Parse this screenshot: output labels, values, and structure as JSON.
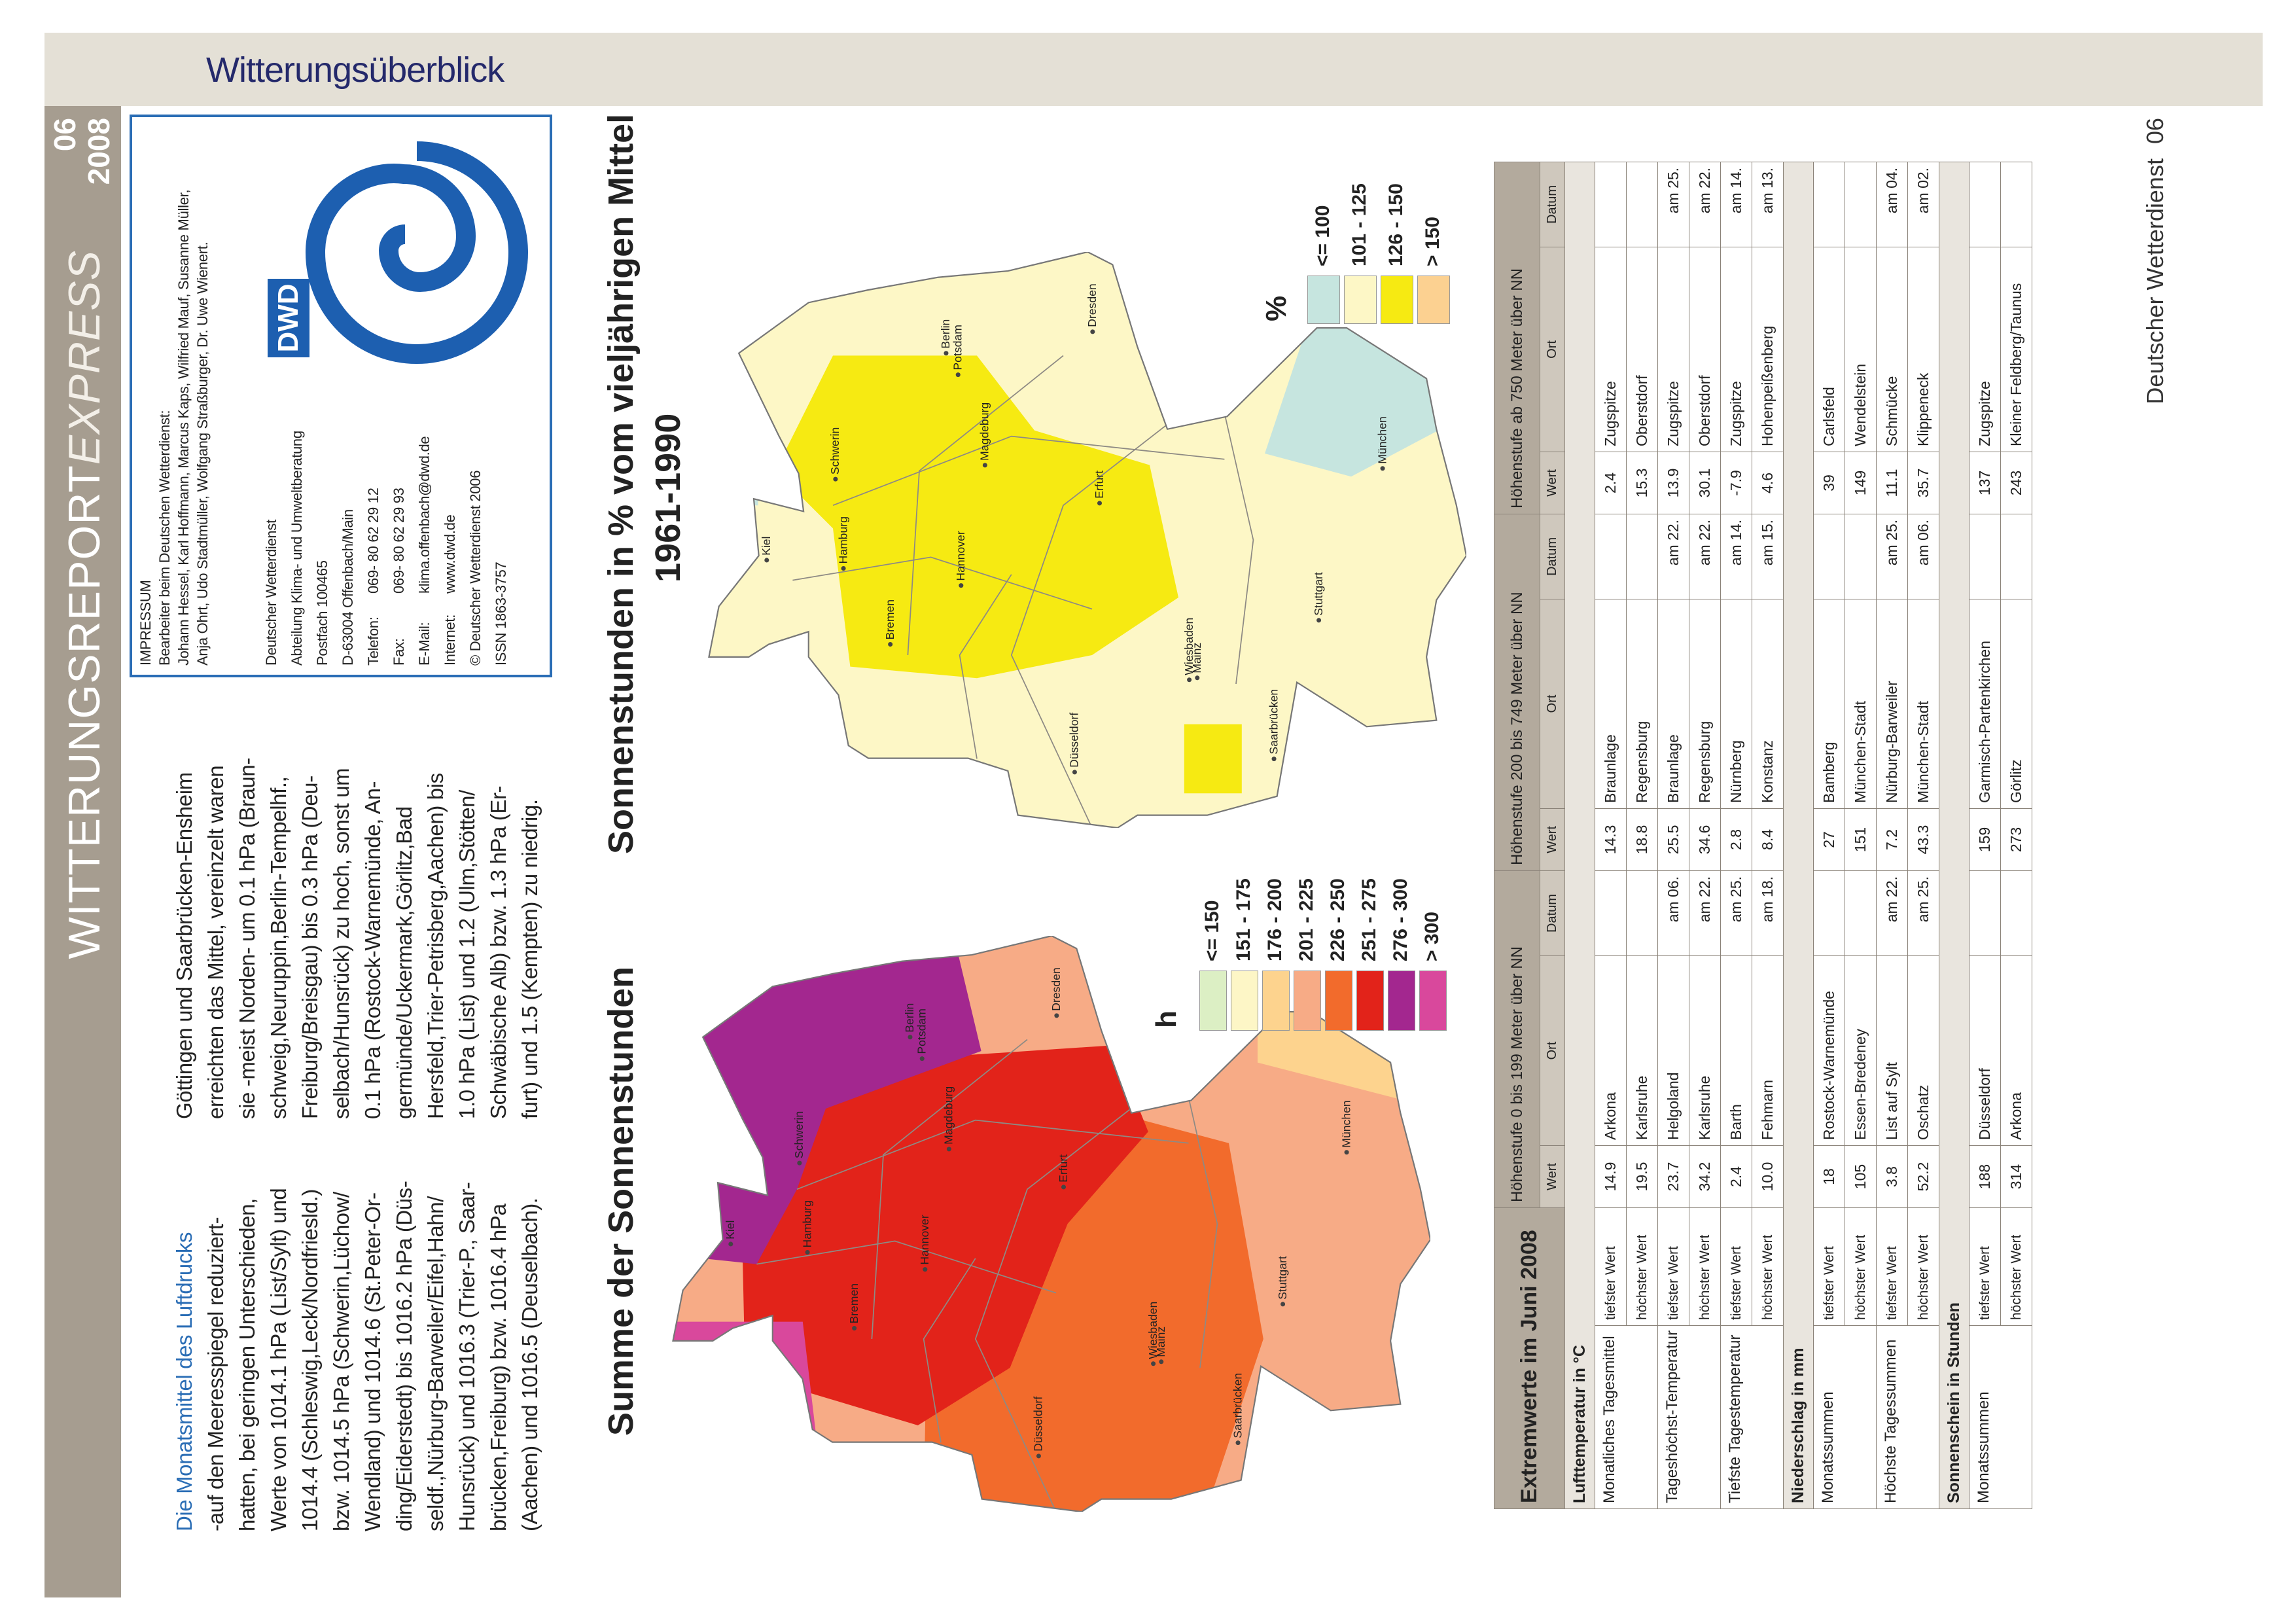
{
  "header": {
    "section": "Witterungsüberblick",
    "title": "WITTERUNGSREPORT",
    "title_suffix": "EXPRESS",
    "issue": "06",
    "year": "2008"
  },
  "article": {
    "columns": [
      [
        "Die Monatsmittel des Luftdrucks",
        "-auf den Meeresspiegel reduziert-",
        "hatten, bei geringen Unterschieden,",
        "Werte von 1014.1 hPa (List/Sylt) und",
        "1014.4 (Schleswig,Leck/Nordfriesld.)",
        "bzw. 1014.5 hPa (Schwerin,Lüchow/",
        "Wendland) und 1014.6 (St.Peter-Or-",
        "ding/Eiderstedt) bis 1016.2 hPa (Düs-",
        "seldf.,Nürburg-Barweiler/Eifel,Hahn/",
        "Hunsrück) und 1016.3 (Trier-P., Saar-",
        "brücken,Freiburg) bzw. 1016.4 hPa",
        "(Aachen) und 1016.5 (Deuselbach)."
      ],
      [
        "Göttingen und Saarbrücken-Ensheim",
        "erreichten das Mittel, vereinzelt waren",
        "sie -meist Norden- um 0.1 hPa (Braun-",
        "schweig,Neuruppin,Berlin-Tempelhf.,",
        "Freiburg/Breisgau) bis 0.3 hPa (Deu-",
        "selbach/Hunsrück) zu hoch, sonst um",
        "0.1 hPa (Rostock-Warnemünde, An-",
        "germünde/Uckermark,Görlitz,Bad",
        "Hersfeld,Trier-Petrisberg,Aachen) bis",
        "1.0 hPa (List) und 1.2 (Ulm,Stötten/",
        "Schwäbische Alb) bzw. 1.3 hPa (Er-",
        "furt) und 1.5 (Kempten) zu niedrig."
      ]
    ]
  },
  "impressum": {
    "heading": "IMPRESSUM",
    "editors_heading": "Bearbeiter beim Deutschen Wetterdienst:",
    "editors": [
      "Johann Hessel, Karl Hoffmann, Marcus Kaps, Wilfried Mauf, Susanne Müller,",
      "Anja Ohrt, Udo Stadtmüller, Wolfgang Straßburger, Dr. Uwe Wienert."
    ],
    "address": [
      "Deutscher Wetterdienst",
      "Abteilung Klima- und Umweltberatung",
      "Postfach 100465",
      "D-63004 Offenbach/Main"
    ],
    "contact": [
      {
        "label": "Telefon:",
        "value": "069- 80 62 29 12"
      },
      {
        "label": "Fax:",
        "value": "069- 80 62 29 93"
      },
      {
        "label": "E-Mail:",
        "value": "klima.offenbach@dwd.de"
      },
      {
        "label": "Internet:",
        "value": "www.dwd.de"
      }
    ],
    "closing": [
      "© Deutscher Wetterdienst 2006",
      "ISSN 1863-3757"
    ],
    "logo": "DWD"
  },
  "maps": [
    {
      "title": "Summe der Sonnenstunden",
      "unit": "h",
      "legend": [
        {
          "label": "<= 150",
          "color": "#dcefc4"
        },
        {
          "label": "151 - 175",
          "color": "#fdf6c6"
        },
        {
          "label": "176 - 200",
          "color": "#fdd38e"
        },
        {
          "label": "201 - 225",
          "color": "#f7ab86"
        },
        {
          "label": "226 - 250",
          "color": "#f26b2c"
        },
        {
          "label": "251 - 275",
          "color": "#e2231a"
        },
        {
          "label": "276 - 300",
          "color": "#a3278f"
        },
        {
          "label": "> 300",
          "color": "#d9489c"
        }
      ],
      "cities": [
        "Kiel",
        "Schwerin",
        "Hamburg",
        "Bremen",
        "Berlin",
        "Potsdam",
        "Hannover",
        "Magdeburg",
        "Dresden",
        "Erfurt",
        "Düsseldorf",
        "Wiesbaden",
        "Mainz",
        "Saarbrücken",
        "Stuttgart",
        "München"
      ]
    },
    {
      "title": "Sonnenstunden in % vom vieljährigen Mittel",
      "subtitle": "1961-1990",
      "unit": "%",
      "legend": [
        {
          "label": "<= 100",
          "color": "#c6e5df"
        },
        {
          "label": "101 - 125",
          "color": "#fdf7c6"
        },
        {
          "label": "126 - 150",
          "color": "#f6ea12"
        },
        {
          "label": "> 150",
          "color": "#fcd191"
        }
      ],
      "cities": [
        "Kiel",
        "Schwerin",
        "Hamburg",
        "Bremen",
        "Berlin",
        "Potsdam",
        "Hannover",
        "Magdeburg",
        "Dresden",
        "Erfurt",
        "Düsseldorf",
        "Wiesbaden",
        "Mainz",
        "Saarbrücken",
        "Stuttgart",
        "München"
      ]
    }
  ],
  "table": {
    "title": "Extremwerte im Juni 2008",
    "groups": [
      "Höhenstufe 0 bis 199 Meter über NN",
      "Höhenstufe 200 bis 749 Meter über NN",
      "Höhenstufe ab 750 Meter über NN"
    ],
    "columns": [
      "Wert",
      "Ort",
      "Datum"
    ],
    "sections": [
      {
        "title": "Lufttemperatur in °C",
        "rows": [
          {
            "label": "Monatliches Tagesmittel",
            "entries": [
              {
                "stat": "tiefster Wert",
                "cells": [
                  {
                    "value": "14.9",
                    "place": "Arkona"
                  },
                  {
                    "value": "14.3",
                    "place": "Braunlage"
                  },
                  {
                    "value": "2.4",
                    "place": "Zugspitze"
                  }
                ]
              },
              {
                "stat": "höchster Wert",
                "cells": [
                  {
                    "value": "19.5",
                    "place": "Karlsruhe"
                  },
                  {
                    "value": "18.8",
                    "place": "Regensburg"
                  },
                  {
                    "value": "15.3",
                    "place": "Oberstdorf"
                  }
                ]
              }
            ]
          },
          {
            "label": "Tageshöchst-Temperatur",
            "entries": [
              {
                "stat": "tiefster Wert",
                "cells": [
                  {
                    "value": "23.7",
                    "place": "Helgoland",
                    "date": "am 06."
                  },
                  {
                    "value": "25.5",
                    "place": "Braunlage",
                    "date": "am 22."
                  },
                  {
                    "value": "13.9",
                    "place": "Zugspitze",
                    "date": "am 25."
                  }
                ]
              },
              {
                "stat": "höchster Wert",
                "cells": [
                  {
                    "value": "34.2",
                    "place": "Karlsruhe",
                    "date": "am 22."
                  },
                  {
                    "value": "34.6",
                    "place": "Regensburg",
                    "date": "am 22."
                  },
                  {
                    "value": "30.1",
                    "place": "Oberstdorf",
                    "date": "am 22."
                  }
                ]
              }
            ]
          },
          {
            "label": "Tiefste Tagestemperatur",
            "entries": [
              {
                "stat": "tiefster Wert",
                "cells": [
                  {
                    "value": "2.4",
                    "place": "Barth",
                    "date": "am 25."
                  },
                  {
                    "value": "2.8",
                    "place": "Nürnberg",
                    "date": "am 14."
                  },
                  {
                    "value": "-7.9",
                    "place": "Zugspitze",
                    "date": "am 14."
                  }
                ]
              },
              {
                "stat": "höchster Wert",
                "cells": [
                  {
                    "value": "10.0",
                    "place": "Fehmarn",
                    "date": "am 18."
                  },
                  {
                    "value": "8.4",
                    "place": "Konstanz",
                    "date": "am 15."
                  },
                  {
                    "value": "4.6",
                    "place": "Hohenpeißenberg",
                    "date": "am 13."
                  }
                ]
              }
            ]
          }
        ]
      },
      {
        "title": "Niederschlag in mm",
        "rows": [
          {
            "label": "Monatssummen",
            "entries": [
              {
                "stat": "tiefster Wert",
                "cells": [
                  {
                    "value": "18",
                    "place": "Rostock-Warnemünde"
                  },
                  {
                    "value": "27",
                    "place": "Bamberg"
                  },
                  {
                    "value": "39",
                    "place": "Carlsfeld"
                  }
                ]
              },
              {
                "stat": "höchster Wert",
                "cells": [
                  {
                    "value": "105",
                    "place": "Essen-Bredeney"
                  },
                  {
                    "value": "151",
                    "place": "München-Stadt"
                  },
                  {
                    "value": "149",
                    "place": "Wendelstein"
                  }
                ]
              }
            ]
          },
          {
            "label": "Höchste Tagessummen",
            "entries": [
              {
                "stat": "tiefster Wert",
                "cells": [
                  {
                    "value": "3.8",
                    "place": "List auf Sylt",
                    "date": "am 22."
                  },
                  {
                    "value": "7.2",
                    "place": "Nürburg-Barweiler",
                    "date": "am 25."
                  },
                  {
                    "value": "11.1",
                    "place": "Schmücke",
                    "date": "am 04."
                  }
                ]
              },
              {
                "stat": "höchster Wert",
                "cells": [
                  {
                    "value": "52.2",
                    "place": "Oschatz",
                    "date": "am 25."
                  },
                  {
                    "value": "43.3",
                    "place": "München-Stadt",
                    "date": "am 06."
                  },
                  {
                    "value": "35.7",
                    "place": "Klippeneck",
                    "date": "am 02."
                  }
                ]
              }
            ]
          }
        ]
      },
      {
        "title": "Sonnenschein in Stunden",
        "rows": [
          {
            "label": "Monatssummen",
            "entries": [
              {
                "stat": "tiefster Wert",
                "cells": [
                  {
                    "value": "188",
                    "place": "Düsseldorf"
                  },
                  {
                    "value": "159",
                    "place": "Garmisch-Partenkirchen"
                  },
                  {
                    "value": "137",
                    "place": "Zugspitze"
                  }
                ]
              },
              {
                "stat": "höchster Wert",
                "cells": [
                  {
                    "value": "314",
                    "place": "Arkona"
                  },
                  {
                    "value": "273",
                    "place": "Görlitz"
                  },
                  {
                    "value": "243",
                    "place": "Kleiner Feldberg/Taunus"
                  }
                ]
              }
            ]
          }
        ]
      }
    ]
  },
  "footer": {
    "publisher": "Deutscher Wetterdienst",
    "page": "06"
  }
}
